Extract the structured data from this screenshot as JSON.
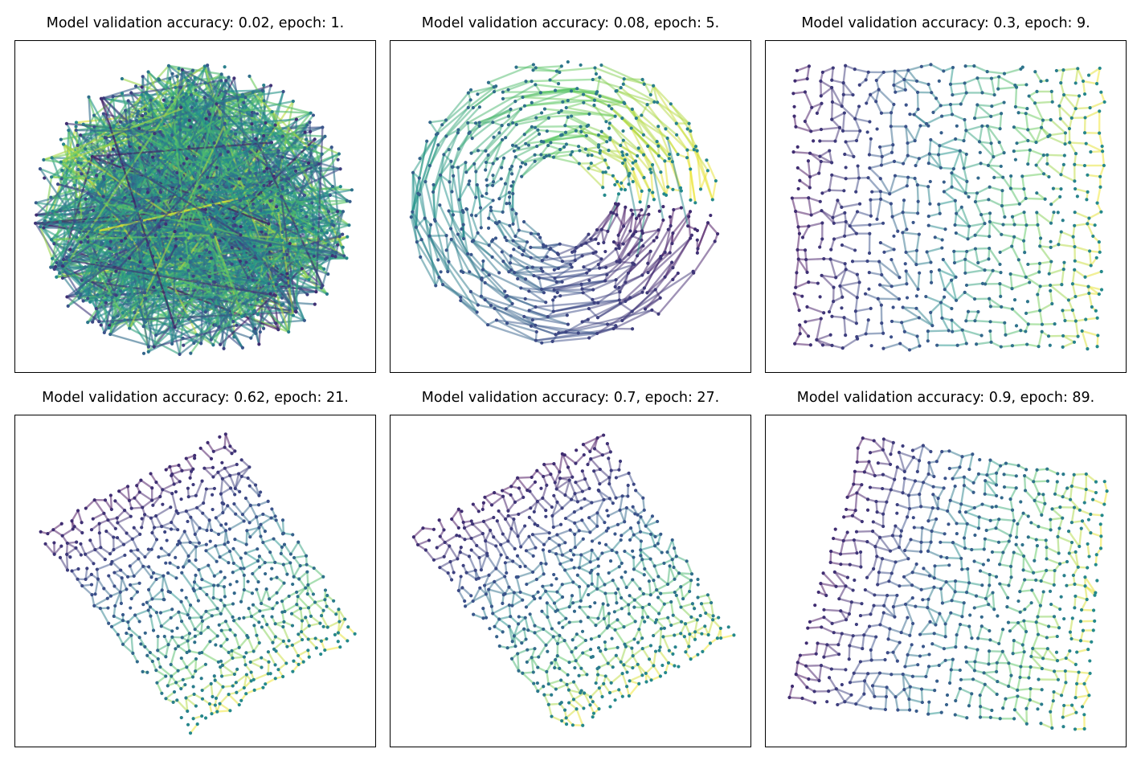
{
  "colormap": [
    "#440154",
    "#3b528b",
    "#21918c",
    "#5ec962",
    "#fde725"
  ],
  "chart_data": [
    {
      "type": "scatter",
      "title": "Model validation accuracy: 0.02, epoch: 1.",
      "accuracy": 0.02,
      "epoch": 1,
      "shape": "blob",
      "grid": false,
      "legend": "none"
    },
    {
      "type": "scatter",
      "title": "Model validation accuracy: 0.08, epoch: 5.",
      "accuracy": 0.08,
      "epoch": 5,
      "shape": "ring",
      "grid": false,
      "legend": "none"
    },
    {
      "type": "scatter",
      "title": "Model validation accuracy: 0.3, epoch: 9.",
      "accuracy": 0.3,
      "epoch": 9,
      "shape": "square",
      "grid": false,
      "legend": "none"
    },
    {
      "type": "scatter",
      "title": "Model validation accuracy: 0.62, epoch: 21.",
      "accuracy": 0.62,
      "epoch": 21,
      "shape": "tilted-square",
      "grid": false,
      "legend": "none"
    },
    {
      "type": "scatter",
      "title": "Model validation accuracy: 0.7, epoch: 27.",
      "accuracy": 0.7,
      "epoch": 27,
      "shape": "tilted-square",
      "grid": false,
      "legend": "none"
    },
    {
      "type": "scatter",
      "title": "Model validation accuracy: 0.9, epoch: 89.",
      "accuracy": 0.9,
      "epoch": 89,
      "shape": "sheet",
      "grid": false,
      "legend": "none"
    }
  ]
}
